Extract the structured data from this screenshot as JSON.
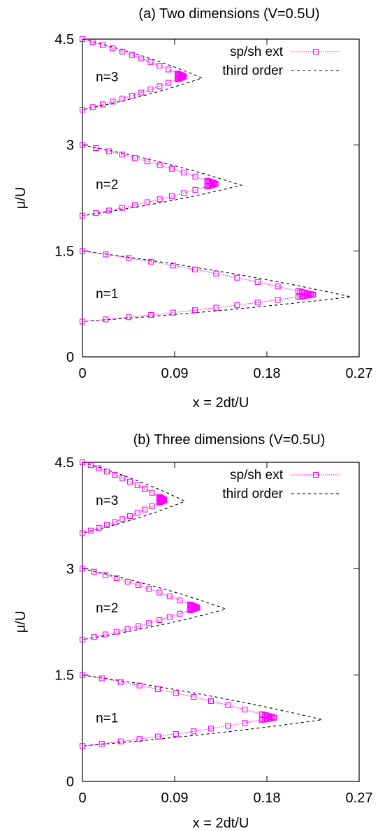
{
  "figure": {
    "panels": [
      {
        "id": "a",
        "title": "(a) Two dimensions (V=0.5U)",
        "xlabel": "x = 2dt/U",
        "ylabel": "μ/U",
        "xlim": [
          0,
          0.27
        ],
        "ylim": [
          0,
          4.5
        ],
        "xticks": [
          {
            "v": 0,
            "label": "0"
          },
          {
            "v": 0.09,
            "label": "0.09"
          },
          {
            "v": 0.18,
            "label": "0.18"
          },
          {
            "v": 0.27,
            "label": "0.27"
          }
        ],
        "yticks": [
          {
            "v": 0,
            "label": "0"
          },
          {
            "v": 1.5,
            "label": "1.5"
          },
          {
            "v": 3,
            "label": "3"
          },
          {
            "v": 4.5,
            "label": "4.5"
          }
        ],
        "legend": {
          "position": "top-right",
          "entries": [
            "sp/sh ext",
            "third order"
          ]
        },
        "lobes": [
          {
            "label": "n=1",
            "label_at": [
              0.013,
              0.9
            ],
            "upper_start": 1.5,
            "lower_start": 0.5,
            "tip": [
              0.225,
              0.88
            ],
            "third_order_tip": [
              0.262,
              0.85
            ]
          },
          {
            "label": "n=2",
            "label_at": [
              0.013,
              2.45
            ],
            "upper_start": 3.0,
            "lower_start": 2.0,
            "tip": [
              0.13,
              2.45
            ],
            "third_order_tip": [
              0.155,
              2.43
            ]
          },
          {
            "label": "n=3",
            "label_at": [
              0.013,
              3.97
            ],
            "upper_start": 4.5,
            "lower_start": 3.5,
            "tip": [
              0.099,
              3.97
            ],
            "third_order_tip": [
              0.117,
              3.95
            ]
          }
        ]
      },
      {
        "id": "b",
        "title": "(b) Three dimensions (V=0.5U)",
        "xlabel": "x = 2dt/U",
        "ylabel": "μ/U",
        "xlim": [
          0,
          0.27
        ],
        "ylim": [
          0,
          4.5
        ],
        "xticks": [
          {
            "v": 0,
            "label": "0"
          },
          {
            "v": 0.09,
            "label": "0.09"
          },
          {
            "v": 0.18,
            "label": "0.18"
          },
          {
            "v": 0.27,
            "label": "0.27"
          }
        ],
        "yticks": [
          {
            "v": 0,
            "label": "0"
          },
          {
            "v": 1.5,
            "label": "1.5"
          },
          {
            "v": 3,
            "label": "3"
          },
          {
            "v": 4.5,
            "label": "4.5"
          }
        ],
        "legend": {
          "position": "top-right",
          "entries": [
            "sp/sh ext",
            "third order"
          ]
        },
        "lobes": [
          {
            "label": "n=1",
            "label_at": [
              0.013,
              0.9
            ],
            "upper_start": 1.5,
            "lower_start": 0.5,
            "tip": [
              0.187,
              0.9
            ],
            "third_order_tip": [
              0.234,
              0.87
            ]
          },
          {
            "label": "n=2",
            "label_at": [
              0.013,
              2.45
            ],
            "upper_start": 3.0,
            "lower_start": 2.0,
            "tip": [
              0.112,
              2.45
            ],
            "third_order_tip": [
              0.14,
              2.43
            ]
          },
          {
            "label": "n=3",
            "label_at": [
              0.013,
              3.97
            ],
            "upper_start": 4.5,
            "lower_start": 3.5,
            "tip": [
              0.08,
              3.97
            ],
            "third_order_tip": [
              0.1,
              3.95
            ]
          }
        ]
      }
    ]
  },
  "chart_data": [
    {
      "type": "line",
      "title": "(a) Two dimensions (V=0.5U)",
      "xlabel": "x = 2dt/U",
      "ylabel": "μ/U",
      "xlim": [
        0,
        0.27
      ],
      "ylim": [
        0,
        4.5
      ],
      "legend_position": "top-right",
      "series": [
        {
          "name": "sp/sh ext",
          "marker": "square",
          "color": "#ff00ff",
          "lobes": {
            "n=1": {
              "tip_x": 0.225,
              "tip_mu": 0.88
            },
            "n=2": {
              "tip_x": 0.13,
              "tip_mu": 2.45
            },
            "n=3": {
              "tip_x": 0.099,
              "tip_mu": 3.97
            }
          }
        },
        {
          "name": "third order",
          "style": "dashed",
          "color": "#000000",
          "lobes": {
            "n=1": {
              "tip_x": 0.262,
              "tip_mu": 0.85
            },
            "n=2": {
              "tip_x": 0.155,
              "tip_mu": 2.43
            },
            "n=3": {
              "tip_x": 0.117,
              "tip_mu": 3.95
            }
          }
        }
      ]
    },
    {
      "type": "line",
      "title": "(b) Three dimensions (V=0.5U)",
      "xlabel": "x = 2dt/U",
      "ylabel": "μ/U",
      "xlim": [
        0,
        0.27
      ],
      "ylim": [
        0,
        4.5
      ],
      "legend_position": "top-right",
      "series": [
        {
          "name": "sp/sh ext",
          "marker": "square",
          "color": "#ff00ff",
          "lobes": {
            "n=1": {
              "tip_x": 0.187,
              "tip_mu": 0.9
            },
            "n=2": {
              "tip_x": 0.112,
              "tip_mu": 2.45
            },
            "n=3": {
              "tip_x": 0.08,
              "tip_mu": 3.97
            }
          }
        },
        {
          "name": "third order",
          "style": "dashed",
          "color": "#000000",
          "lobes": {
            "n=1": {
              "tip_x": 0.234,
              "tip_mu": 0.87
            },
            "n=2": {
              "tip_x": 0.14,
              "tip_mu": 2.43
            },
            "n=3": {
              "tip_x": 0.1,
              "tip_mu": 3.95
            }
          }
        }
      ]
    }
  ],
  "colors": {
    "series_sp_sh": "#ff00ff",
    "series_third_order": "#000000",
    "axis": "#000000",
    "background": "#ffffff"
  }
}
